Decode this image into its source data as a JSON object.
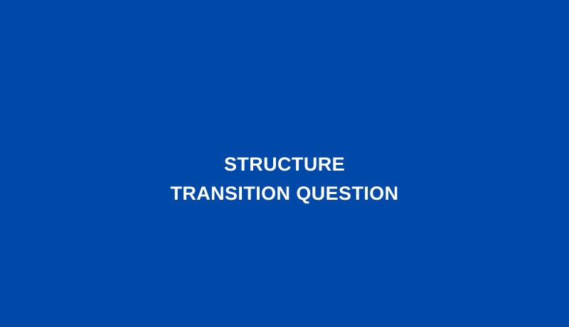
{
  "slide": {
    "background_color": "#0049a9",
    "text_color": "#ffffff",
    "title_lines": [
      "STRUCTURE",
      "TRANSITION QUESTION"
    ]
  }
}
